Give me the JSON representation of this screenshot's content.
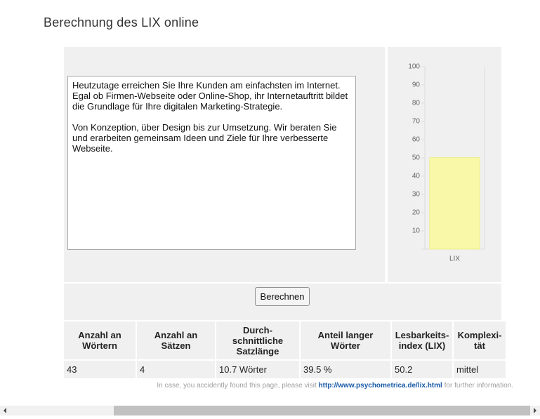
{
  "header": {
    "title": "Berechnung des LIX online"
  },
  "textarea": {
    "paragraphs": [
      [
        "Heutzutage erreichen Sie Ihre Kunden am einfachsten im Internet.",
        "Egal ob Firmen-Webseite oder Online-Shop, ihr Internetauftritt bildet",
        "die Grundlage für Ihre digitalen Marketing-Strategie."
      ],
      [
        "Von Konzeption, über Design bis zur Umsetzung. Wir beraten Sie",
        "und erarbeiten gemeinsam Ideen und Ziele für Ihre verbesserte",
        "Webseite."
      ]
    ]
  },
  "chart_data": {
    "type": "bar",
    "categories": [
      "LIX"
    ],
    "values": [
      50.2
    ],
    "color": "#f8f8a8",
    "ylim": [
      0,
      100
    ],
    "yticks": [
      10,
      20,
      30,
      40,
      50,
      60,
      70,
      80,
      90,
      100
    ],
    "grid": false
  },
  "button": {
    "label": "Berechnen"
  },
  "table": {
    "headers": [
      "Anzahl an Wörtern",
      "Anzahl an Sätzen",
      "Durch-schnittliche Satzlänge",
      "Anteil langer Wörter",
      "Lesbarkeits-index (LIX)",
      "Komplexi-tät"
    ],
    "rows": [
      [
        43,
        4,
        "10.7 Wörter",
        "39.5 %",
        50.2,
        "mittel"
      ]
    ]
  },
  "footer": {
    "before": "In case, you accidently found this page, please visit",
    "link": "http://www.psychometrica.de/lix.html",
    "after": "for further information."
  }
}
